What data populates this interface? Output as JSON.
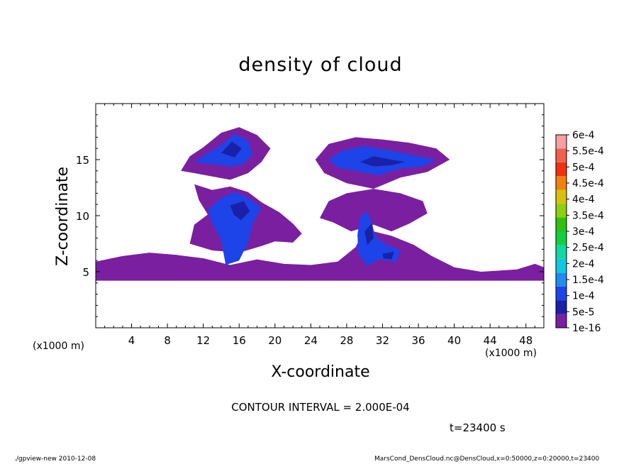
{
  "chart_data": {
    "type": "heatmap",
    "title": "density of cloud",
    "xlabel": "X-coordinate",
    "ylabel": "Z-coordinate",
    "x_unit_left": "(x1000 m)",
    "x_unit_right": "(x1000 m)",
    "xlim": [
      0,
      50
    ],
    "ylim": [
      0,
      20
    ],
    "x_ticks": [
      4,
      8,
      12,
      16,
      20,
      24,
      28,
      32,
      36,
      40,
      44,
      48
    ],
    "y_ticks": [
      5,
      10,
      15
    ],
    "contour_interval": "CONTOUR INTERVAL = 2.000E-04",
    "time_label": "t=23400 s",
    "colorbar": {
      "labels": [
        "1e-16",
        "5e-5",
        "1e-4",
        "1.5e-4",
        "2e-4",
        "2.5e-4",
        "3e-4",
        "3.5e-4",
        "4e-4",
        "4.5e-4",
        "5e-4",
        "5.5e-4",
        "6e-4"
      ],
      "colors": [
        "#7a1fa0",
        "#1a20a8",
        "#1c44e8",
        "#1e8cf0",
        "#12c8e0",
        "#10d8a0",
        "#10d040",
        "#30c010",
        "#8cd010",
        "#d8c010",
        "#f08010",
        "#f03010",
        "#f06050",
        "#f6a0a0"
      ]
    },
    "regions_purple": [
      [
        [
          9.5,
          14.0
        ],
        [
          10.5,
          15.3
        ],
        [
          12,
          16.1
        ],
        [
          14,
          17.4
        ],
        [
          16,
          17.9
        ],
        [
          18,
          17.2
        ],
        [
          19.5,
          16.0
        ],
        [
          18.5,
          14.8
        ],
        [
          17,
          13.8
        ],
        [
          15,
          13.2
        ],
        [
          13,
          13.5
        ],
        [
          11,
          13.8
        ]
      ],
      [
        [
          24.5,
          15.0
        ],
        [
          26,
          16.4
        ],
        [
          29,
          17.0
        ],
        [
          32,
          16.8
        ],
        [
          35,
          16.5
        ],
        [
          38,
          16.0
        ],
        [
          39.5,
          15.0
        ],
        [
          37,
          13.9
        ],
        [
          34,
          13.4
        ],
        [
          31,
          12.4
        ],
        [
          28,
          12.9
        ],
        [
          25.5,
          13.8
        ]
      ],
      [
        [
          11,
          12.8
        ],
        [
          13,
          12.3
        ],
        [
          15,
          12.6
        ],
        [
          17,
          12.1
        ],
        [
          18.5,
          11.2
        ],
        [
          20.5,
          10.3
        ],
        [
          22,
          9.3
        ],
        [
          23,
          8.4
        ],
        [
          22,
          7.6
        ],
        [
          20,
          7.7
        ],
        [
          18.5,
          7.3
        ],
        [
          16,
          6.7
        ],
        [
          13,
          6.9
        ],
        [
          10.5,
          7.5
        ],
        [
          11,
          9.2
        ],
        [
          12.5,
          10.1
        ],
        [
          11.5,
          11.4
        ]
      ],
      [
        [
          25,
          9.8
        ],
        [
          26,
          11.3
        ],
        [
          28,
          12.0
        ],
        [
          31,
          12.4
        ],
        [
          34,
          12.0
        ],
        [
          36.5,
          11.3
        ],
        [
          37,
          10.2
        ],
        [
          35,
          9.3
        ],
        [
          33,
          8.6
        ],
        [
          31,
          9.2
        ],
        [
          28.5,
          8.6
        ],
        [
          26.5,
          9.4
        ]
      ],
      [
        [
          0,
          4.2
        ],
        [
          0,
          5.9
        ],
        [
          3,
          6.4
        ],
        [
          6,
          6.7
        ],
        [
          9,
          6.5
        ],
        [
          12,
          6.2
        ],
        [
          15,
          5.6
        ],
        [
          18,
          6.1
        ],
        [
          21,
          5.7
        ],
        [
          24,
          5.6
        ],
        [
          27,
          5.9
        ],
        [
          29,
          7.2
        ],
        [
          30,
          8.8
        ],
        [
          33,
          8.2
        ],
        [
          35.5,
          7.4
        ],
        [
          37.5,
          6.4
        ],
        [
          40,
          5.4
        ],
        [
          43,
          5.0
        ],
        [
          47,
          5.2
        ],
        [
          49,
          5.7
        ],
        [
          50,
          5.4
        ],
        [
          50,
          4.2
        ]
      ]
    ],
    "regions_blue": [
      [
        [
          11,
          14.8
        ],
        [
          12.5,
          15.6
        ],
        [
          14,
          16.3
        ],
        [
          15.5,
          17.3
        ],
        [
          17,
          16.7
        ],
        [
          17.5,
          15.5
        ],
        [
          16.5,
          14.6
        ],
        [
          15,
          14.4
        ],
        [
          13,
          14.6
        ]
      ],
      [
        [
          26,
          15.0
        ],
        [
          27.5,
          15.8
        ],
        [
          30,
          16.2
        ],
        [
          33,
          15.8
        ],
        [
          36,
          15.3
        ],
        [
          38,
          15.0
        ],
        [
          36.5,
          14.4
        ],
        [
          34,
          14.2
        ],
        [
          31.5,
          13.6
        ],
        [
          29,
          14.0
        ],
        [
          27,
          14.3
        ]
      ],
      [
        [
          12.5,
          10.5
        ],
        [
          14,
          11.6
        ],
        [
          15.5,
          12.1
        ],
        [
          17,
          11.6
        ],
        [
          18.5,
          10.7
        ],
        [
          17.5,
          9.3
        ],
        [
          17,
          7.6
        ],
        [
          16,
          6.0
        ],
        [
          14.5,
          5.6
        ],
        [
          14,
          7.8
        ],
        [
          13,
          9.3
        ]
      ],
      [
        [
          29.5,
          9.9
        ],
        [
          30.2,
          10.4
        ],
        [
          30.8,
          9.4
        ],
        [
          31.2,
          8.1
        ],
        [
          32.5,
          7.4
        ],
        [
          34,
          6.9
        ],
        [
          33.5,
          5.9
        ],
        [
          31.5,
          6.1
        ],
        [
          30.3,
          5.5
        ],
        [
          29.3,
          6.6
        ],
        [
          29.2,
          8.3
        ]
      ]
    ],
    "regions_dark": [
      [
        [
          14,
          15.6
        ],
        [
          15.2,
          16.6
        ],
        [
          16.3,
          16.0
        ],
        [
          15.5,
          15.2
        ]
      ],
      [
        [
          29.5,
          14.8
        ],
        [
          31,
          15.3
        ],
        [
          33,
          15.0
        ],
        [
          34.5,
          14.8
        ],
        [
          33,
          14.5
        ],
        [
          31,
          14.4
        ]
      ],
      [
        [
          15,
          10.9
        ],
        [
          16.5,
          11.3
        ],
        [
          17.2,
          10.4
        ],
        [
          16.2,
          9.6
        ],
        [
          15.4,
          10.1
        ]
      ],
      [
        [
          30.0,
          8.6
        ],
        [
          30.8,
          9.3
        ],
        [
          31.0,
          8.0
        ],
        [
          30.3,
          7.4
        ]
      ],
      [
        [
          32.0,
          6.6
        ],
        [
          33.3,
          6.8
        ],
        [
          33.0,
          6.1
        ],
        [
          32.1,
          6.2
        ]
      ]
    ]
  },
  "footer": {
    "left": "./gpview-new   2010-12-08",
    "right": "MarsCond_DensCloud.nc@DensCloud,x=0:50000,z=0:20000,t=23400"
  }
}
